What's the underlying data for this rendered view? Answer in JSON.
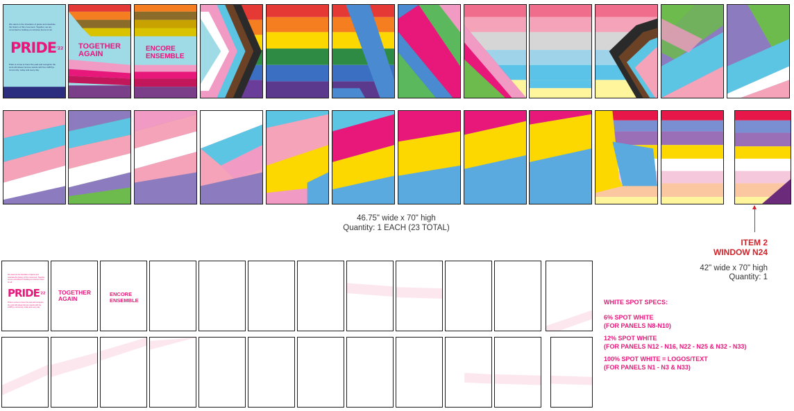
{
  "colors": {
    "pink": "#e8177a",
    "lightblue": "#5cc5e3",
    "lightpink": "#f19ac4",
    "white": "#ffffff",
    "purple": "#8c7cbf",
    "green": "#6cbb4c",
    "yellow": "#fcd800",
    "blue": "#5aaae0",
    "red": "#e53935",
    "orange": "#f57f20",
    "darkgreen": "#2e8b43",
    "navy": "#2b2d7f",
    "brown": "#6b4226",
    "black": "#2a2a2a",
    "spec_red": "#d2232a"
  },
  "panel1": {
    "pride": "PRIDE",
    "year": "'22",
    "intro": "We stand on the shoulders of giants and celebrate the history of this movement. Together, we are committed to building an inclusive future for all.",
    "outro": "Pride is a time to honor the past and recognize the work still ahead. Encore stands with the LGBTQ+ community, today and every day."
  },
  "panel2": {
    "title": "TOGETHER AGAIN"
  },
  "panel3": {
    "title": "ENCORE ENSEMBLE"
  },
  "dimensions": {
    "size": "46.75\" wide x 70\" high",
    "quantity": "Quantity: 1 EACH (23 TOTAL)"
  },
  "item2": {
    "title": "ITEM 2",
    "window": "WINDOW N24",
    "size": "42\" wide x 70\" high",
    "quantity": "Quantity: 1"
  },
  "specs": {
    "heading": "WHITE SPOT SPECS:",
    "spec6": "6% SPOT WHITE",
    "spec6_panels": "(FOR PANELS N8-N10)",
    "spec12": "12% SPOT WHITE",
    "spec12_panels": "(FOR PANELS N12 - N16, N22 - N25 & N32 - N33)",
    "spec100": "100% SPOT WHITE = LOGOS/TEXT",
    "spec100_panels": "(FOR PANELS N1 - N3 & N33)"
  }
}
